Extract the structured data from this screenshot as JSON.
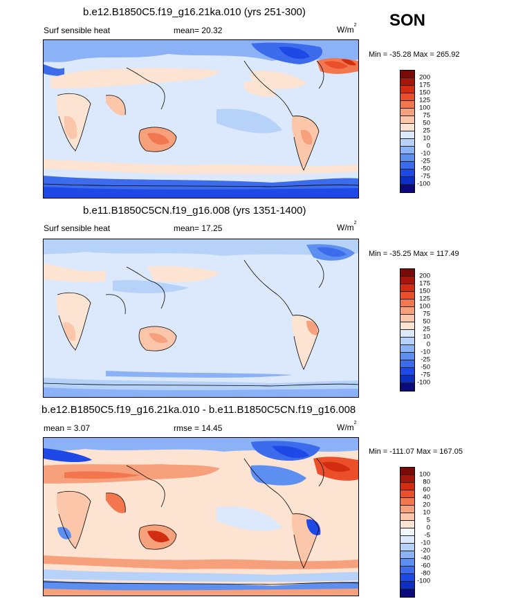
{
  "season": "SON",
  "palette_base": [
    "#0a0a7a",
    "#0d2ec2",
    "#1f49e6",
    "#3c6ceb",
    "#5d8ff0",
    "#8bb1f6",
    "#b7d2f9",
    "#dce9fc",
    "#fde3d2",
    "#fbc6aa",
    "#f7a07c",
    "#f2774f",
    "#ea4f2a",
    "#d22d10",
    "#a6160a",
    "#7a0a06"
  ],
  "palette_diff": [
    "#0a0a7a",
    "#0d2ec2",
    "#1f49e6",
    "#3c6ceb",
    "#5d8ff0",
    "#8bb1f6",
    "#b7d2f9",
    "#dce9fc",
    "#f3f6fd",
    "#fde3d2",
    "#fbc6aa",
    "#f7a07c",
    "#f2774f",
    "#ea4f2a",
    "#d22d10",
    "#a6160a",
    "#7a0a06"
  ],
  "panels": [
    {
      "title": "b.e12.B1850C5.f19_g16.21ka.010 (yrs 251-300)",
      "left_label": "Surf sensible heat",
      "center_label": "mean=  20.32",
      "units": "W/m",
      "units_exp": "2",
      "minmax": "Min = -35.28 Max = 265.92",
      "levels": [
        "200",
        "175",
        "150",
        "125",
        "100",
        "75",
        "50",
        "25",
        "10",
        "0",
        "-10",
        "-25",
        "-50",
        "-75",
        "-100"
      ]
    },
    {
      "title": "b.e11.B1850C5CN.f19_g16.008 (yrs 1351-1400)",
      "left_label": "Surf sensible heat",
      "center_label": "mean=  17.25",
      "units": "W/m",
      "units_exp": "2",
      "minmax": "Min = -35.25 Max = 117.49",
      "levels": [
        "200",
        "175",
        "150",
        "125",
        "100",
        "75",
        "50",
        "25",
        "10",
        "0",
        "-10",
        "-25",
        "-50",
        "-75",
        "-100"
      ]
    },
    {
      "title": "b.e12.B1850C5.f19_g16.21ka.010 - b.e11.B1850C5CN.f19_g16.008",
      "left_label": "mean =  3.07",
      "center_label": "rmse =  14.45",
      "units": "W/m",
      "units_exp": "2",
      "minmax": "Min = -111.07 Max = 167.05",
      "levels": [
        "100",
        "80",
        "60",
        "40",
        "20",
        "10",
        "5",
        "0",
        "-5",
        "-10",
        "-20",
        "-40",
        "-60",
        "-80",
        "-100"
      ]
    }
  ]
}
